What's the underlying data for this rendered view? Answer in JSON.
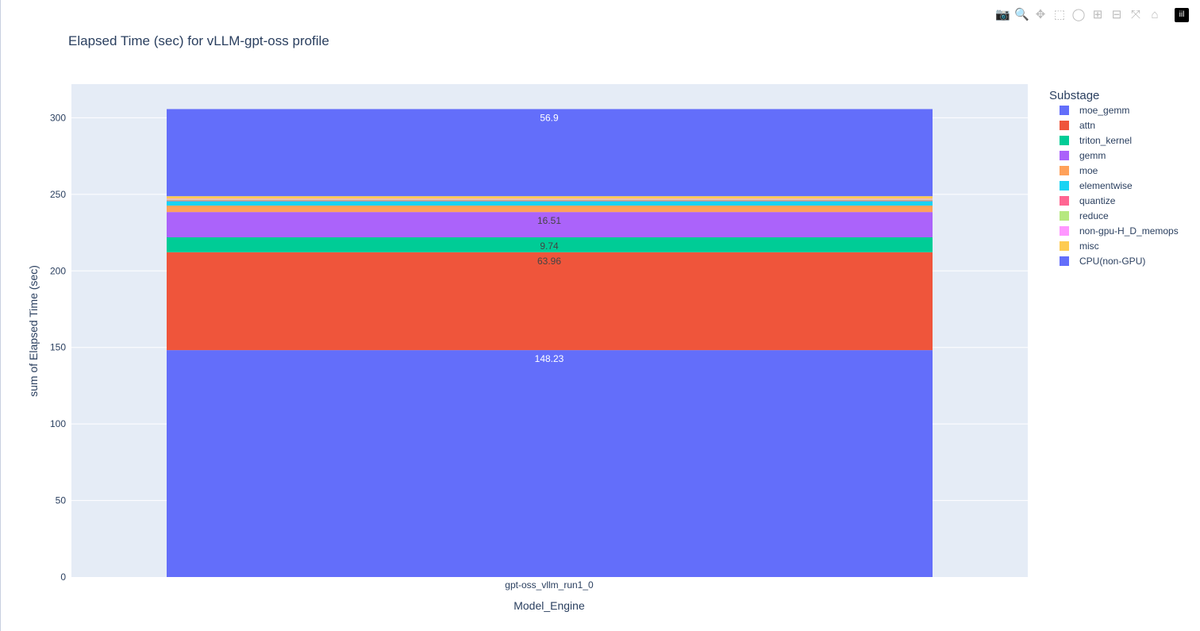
{
  "modebar": [
    {
      "name": "camera-icon",
      "glyph": "📷"
    },
    {
      "name": "zoom-icon",
      "glyph": "🔍"
    },
    {
      "name": "pan-icon",
      "glyph": "✥"
    },
    {
      "name": "box-select-icon",
      "glyph": "⬚"
    },
    {
      "name": "lasso-select-icon",
      "glyph": "◯"
    },
    {
      "name": "zoom-in-icon",
      "glyph": "⊞"
    },
    {
      "name": "zoom-out-icon",
      "glyph": "⊟"
    },
    {
      "name": "autoscale-icon",
      "glyph": "⤧"
    },
    {
      "name": "reset-axes-icon",
      "glyph": "⌂"
    },
    {
      "name": "plotly-logo-icon",
      "glyph": "iil"
    }
  ],
  "chart_data": {
    "type": "bar",
    "barmode": "stack",
    "title": "Elapsed Time (sec) for vLLM-gpt-oss profile",
    "xlabel": "Model_Engine",
    "ylabel": "sum of Elapsed Time (sec)",
    "categories": [
      "gpt-oss_vllm_run1_0"
    ],
    "ylim": [
      0,
      322
    ],
    "yticks": [
      0,
      50,
      100,
      150,
      200,
      250,
      300
    ],
    "grid": true,
    "legend_title": "Substage",
    "legend_placement": "right",
    "series": [
      {
        "name": "moe_gemm",
        "values": [
          148.23
        ],
        "color": "#636efa",
        "label": "148.23",
        "label_color": "#fff"
      },
      {
        "name": "attn",
        "values": [
          63.96
        ],
        "color": "#EF553B",
        "label": "63.96",
        "label_color": "#444"
      },
      {
        "name": "triton_kernel",
        "values": [
          9.74
        ],
        "color": "#00cc96",
        "label": "9.74",
        "label_color": "#444"
      },
      {
        "name": "gemm",
        "values": [
          16.51
        ],
        "color": "#ab63fa",
        "label": "16.51",
        "label_color": "#444"
      },
      {
        "name": "moe",
        "values": [
          4.2
        ],
        "color": "#FFA15A"
      },
      {
        "name": "elementwise",
        "values": [
          2.9
        ],
        "color": "#19d3f3"
      },
      {
        "name": "quantize",
        "values": [
          0.5
        ],
        "color": "#FF6692"
      },
      {
        "name": "reduce",
        "values": [
          0.6
        ],
        "color": "#B6E880"
      },
      {
        "name": "non-gpu-H_D_memops",
        "values": [
          0.5
        ],
        "color": "#FF97FF"
      },
      {
        "name": "misc",
        "values": [
          1.66
        ],
        "color": "#FECB52"
      },
      {
        "name": "CPU(non-GPU)",
        "values": [
          56.9
        ],
        "color": "#636efa",
        "label": "56.9",
        "label_color": "#fff"
      }
    ]
  }
}
